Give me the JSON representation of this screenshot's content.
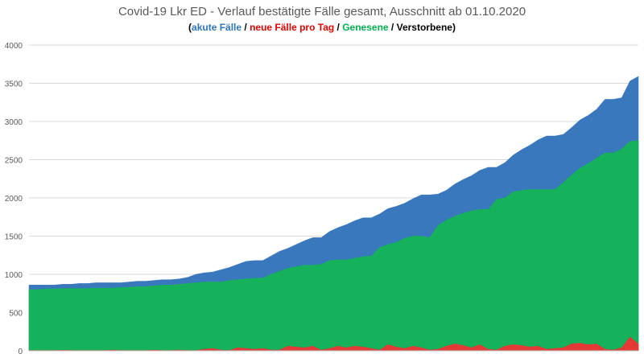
{
  "chart_data": {
    "type": "area",
    "title": "Covid-19 Lkr ED - Verlauf bestätigte Fälle gesamt, Ausschnitt ab 01.10.2020",
    "subtitle": {
      "open": "(",
      "parts": [
        {
          "text": "akute Fälle",
          "color": "#2e75b6"
        },
        {
          "text": " / ",
          "color": "#000000"
        },
        {
          "text": "neue Fälle pro Tag",
          "color": "#e00000"
        },
        {
          "text": " / ",
          "color": "#000000"
        },
        {
          "text": "Genesene",
          "color": "#00b050"
        },
        {
          "text": " / ",
          "color": "#000000"
        },
        {
          "text": "Verstorbene",
          "color": "#000000"
        }
      ],
      "close": ")"
    },
    "ylim": [
      0,
      4000
    ],
    "yticks": [
      0,
      500,
      1000,
      1500,
      2000,
      2500,
      3000,
      3500,
      4000
    ],
    "grid": true,
    "series": [
      {
        "name": "akute Fälle",
        "color": "#3a78be",
        "values": [
          860,
          860,
          860,
          860,
          870,
          870,
          880,
          880,
          890,
          890,
          890,
          890,
          900,
          910,
          910,
          920,
          930,
          930,
          940,
          960,
          1000,
          1020,
          1030,
          1060,
          1090,
          1130,
          1170,
          1180,
          1180,
          1240,
          1300,
          1340,
          1390,
          1440,
          1480,
          1480,
          1560,
          1610,
          1650,
          1700,
          1740,
          1740,
          1790,
          1860,
          1890,
          1930,
          1990,
          2040,
          2040,
          2050,
          2100,
          2180,
          2240,
          2290,
          2360,
          2400,
          2400,
          2460,
          2560,
          2630,
          2690,
          2760,
          2810,
          2810,
          2830,
          2920,
          3020,
          3080,
          3160,
          3290,
          3290,
          3310,
          3530,
          3590
        ]
      },
      {
        "name": "Genesene",
        "color": "#15b15b",
        "values": [
          800,
          800,
          810,
          810,
          815,
          815,
          815,
          815,
          820,
          820,
          820,
          830,
          830,
          840,
          840,
          850,
          860,
          860,
          870,
          880,
          890,
          900,
          900,
          900,
          920,
          930,
          940,
          950,
          950,
          1000,
          1040,
          1080,
          1100,
          1120,
          1120,
          1130,
          1180,
          1190,
          1190,
          1210,
          1230,
          1240,
          1350,
          1390,
          1420,
          1470,
          1500,
          1500,
          1480,
          1640,
          1710,
          1760,
          1800,
          1830,
          1850,
          1850,
          1980,
          2000,
          2080,
          2100,
          2110,
          2110,
          2110,
          2110,
          2200,
          2300,
          2390,
          2450,
          2520,
          2590,
          2590,
          2640,
          2740,
          2750
        ]
      },
      {
        "name": "neue Fälle pro Tag",
        "color": "#e53935",
        "values": [
          5,
          5,
          5,
          5,
          8,
          5,
          5,
          5,
          5,
          5,
          10,
          5,
          5,
          5,
          5,
          10,
          5,
          5,
          10,
          5,
          5,
          20,
          30,
          10,
          5,
          40,
          30,
          20,
          30,
          10,
          10,
          60,
          50,
          40,
          60,
          10,
          30,
          60,
          40,
          60,
          50,
          30,
          10,
          80,
          50,
          30,
          60,
          40,
          10,
          20,
          60,
          90,
          70,
          40,
          80,
          20,
          10,
          60,
          80,
          70,
          50,
          60,
          20,
          30,
          40,
          90,
          100,
          80,
          90,
          20,
          10,
          40,
          180,
          90
        ]
      }
    ]
  }
}
